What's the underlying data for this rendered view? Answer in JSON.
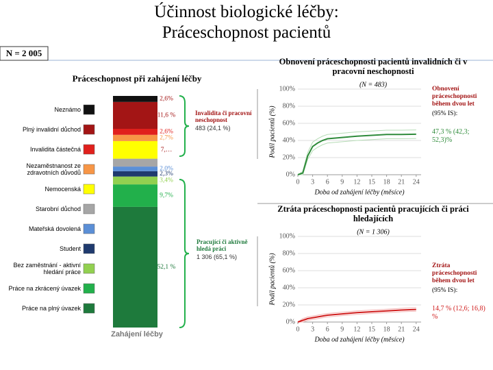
{
  "title": [
    "Účinnost biologické léčby:",
    "Práceschopnost pacientů"
  ],
  "sample_size": "N = 2 005",
  "chart_data": [
    {
      "type": "stacked_bar",
      "title": "Práceschopnost při zahájení léčby",
      "categories": [
        "Zahájení léčby"
      ],
      "ylim": [
        0,
        100
      ],
      "series": [
        {
          "name": "Práce na plný úvazek",
          "color": "#1e7a3c",
          "values": [
            52.1
          ],
          "value_labels": [
            "52,1 %"
          ]
        },
        {
          "name": "Práce na zkrácený úvazek",
          "color": "#22b04b",
          "values": [
            9.7
          ],
          "value_labels": [
            "9,7%"
          ]
        },
        {
          "name": "Bez zaměstnání - aktivní hledání práce",
          "color": "#92d050",
          "values": [
            3.4
          ],
          "value_labels": [
            "3,4%"
          ]
        },
        {
          "name": "Student",
          "color": "#1f3a6e",
          "values": [
            2.3
          ],
          "value_labels": [
            "2,3%"
          ]
        },
        {
          "name": "Mateřská dovolená",
          "color": "#5b8fd6",
          "values": [
            2.0
          ],
          "value_labels": [
            "2,0%"
          ]
        },
        {
          "name": "Starobní důchod",
          "color": "#a6a6a6",
          "values": [
            3.4
          ],
          "value_labels": [
            null
          ]
        },
        {
          "name": "Nemocenská",
          "color": "#ffff00",
          "values": [
            7.6
          ],
          "value_labels": [
            "7,…"
          ]
        },
        {
          "name": "Nezaměstnanost ze zdravotních důvodů",
          "color": "#f79646",
          "values": [
            2.7
          ],
          "value_labels": [
            "2,7%"
          ]
        },
        {
          "name": "Invalidita částečná",
          "color": "#e0201c",
          "values": [
            2.6
          ],
          "value_labels": [
            "2,6%"
          ]
        },
        {
          "name": "Plný invalidní důchod",
          "color": "#a31515",
          "values": [
            11.6
          ],
          "value_labels": [
            "11,6 %"
          ]
        },
        {
          "name": "Neznámo",
          "color": "#111111",
          "values": [
            2.6
          ],
          "value_labels": [
            "2,6%"
          ]
        }
      ],
      "annotations": [
        {
          "title": "Invalidita či pracovní neschopnost",
          "text": "483 (24,1 %)",
          "color": "#a31515"
        },
        {
          "title": "Pracující či aktivně hledá práci",
          "text": "1 306 (65,1 %)",
          "color": "#1e7a3c"
        }
      ]
    },
    {
      "type": "line",
      "title": "Obnovení práceschopnosti pacientů invalidních či v pracovní neschopnosti",
      "subtitle": "(N = 483)",
      "y_label": "Podíl pacientů (%)",
      "x_label": "Doba od zahájení léčby (měsíce)",
      "x": [
        0,
        1,
        2,
        3,
        4,
        5,
        6,
        8,
        10,
        12,
        15,
        18,
        21,
        24
      ],
      "series": [
        {
          "color": "#b6dcb6",
          "values": [
            0,
            0,
            18,
            28,
            32,
            35,
            37,
            38,
            39,
            40,
            41,
            42,
            42,
            42.3
          ]
        },
        {
          "color": "#b6dcb6",
          "values": [
            0,
            4,
            26,
            38,
            42,
            45,
            47,
            48,
            49,
            50,
            51,
            52,
            52,
            52.3
          ]
        },
        {
          "color": "#2e8b3a",
          "values": [
            0,
            2,
            22,
            33,
            37,
            40,
            42,
            43,
            44,
            45,
            46,
            47,
            47,
            47.3
          ]
        }
      ],
      "xlim": [
        0,
        25
      ],
      "xticks": [
        0,
        3,
        6,
        9,
        12,
        15,
        18,
        21,
        24
      ],
      "ylim": [
        0,
        100
      ],
      "yticks": [
        {
          "value": 0,
          "label": "0%"
        },
        {
          "value": 20,
          "label": "20%"
        },
        {
          "value": 40,
          "label": "40%"
        },
        {
          "value": 60,
          "label": "60%"
        },
        {
          "value": 80,
          "label": "80%"
        },
        {
          "value": 100,
          "label": "100%"
        }
      ],
      "grid": true,
      "annotation": {
        "title": "Obnovení práceschopnosti během dvou let",
        "note": "(95% IS):",
        "value": "47,3 % (42,3; 52,3)%",
        "color": "#2e8b3a"
      }
    },
    {
      "type": "line",
      "title": "Ztráta práceschopnosti pacientů pracujících či práci hledajících",
      "subtitle": "(N = 1 306)",
      "y_label": "Podíl pacientů (%)",
      "x_label": "Doba od zahájení léčby (měsíce)",
      "x": [
        0,
        1,
        2,
        3,
        4,
        5,
        6,
        8,
        10,
        12,
        15,
        18,
        21,
        24
      ],
      "series": [
        {
          "color": "#f2b3b3",
          "values": [
            0,
            0,
            2,
            3,
            4,
            5,
            6,
            7,
            8,
            9,
            10,
            11,
            12,
            12.6
          ]
        },
        {
          "color": "#f2b3b3",
          "values": [
            0,
            4,
            6,
            7,
            8,
            9,
            10,
            11,
            12,
            13,
            14,
            15,
            16,
            16.8
          ]
        },
        {
          "color": "#d01c1c",
          "values": [
            0,
            2,
            4,
            5,
            6,
            7,
            8,
            9,
            10,
            11,
            12,
            13,
            14,
            14.7
          ]
        }
      ],
      "xlim": [
        0,
        25
      ],
      "xticks": [
        0,
        3,
        6,
        9,
        12,
        15,
        18,
        21,
        24
      ],
      "ylim": [
        0,
        100
      ],
      "yticks": [
        {
          "value": 0,
          "label": "0%"
        },
        {
          "value": 20,
          "label": "20%"
        },
        {
          "value": 40,
          "label": "40%"
        },
        {
          "value": 60,
          "label": "60%"
        },
        {
          "value": 80,
          "label": "80%"
        },
        {
          "value": 100,
          "label": "100%"
        }
      ],
      "grid": true,
      "annotation": {
        "title": "Ztráta práceschopnosti během dvou let",
        "note": "(95% IS):",
        "value": "14,7 % (12,6; 16,8) %",
        "color": "#d01c1c"
      }
    }
  ]
}
